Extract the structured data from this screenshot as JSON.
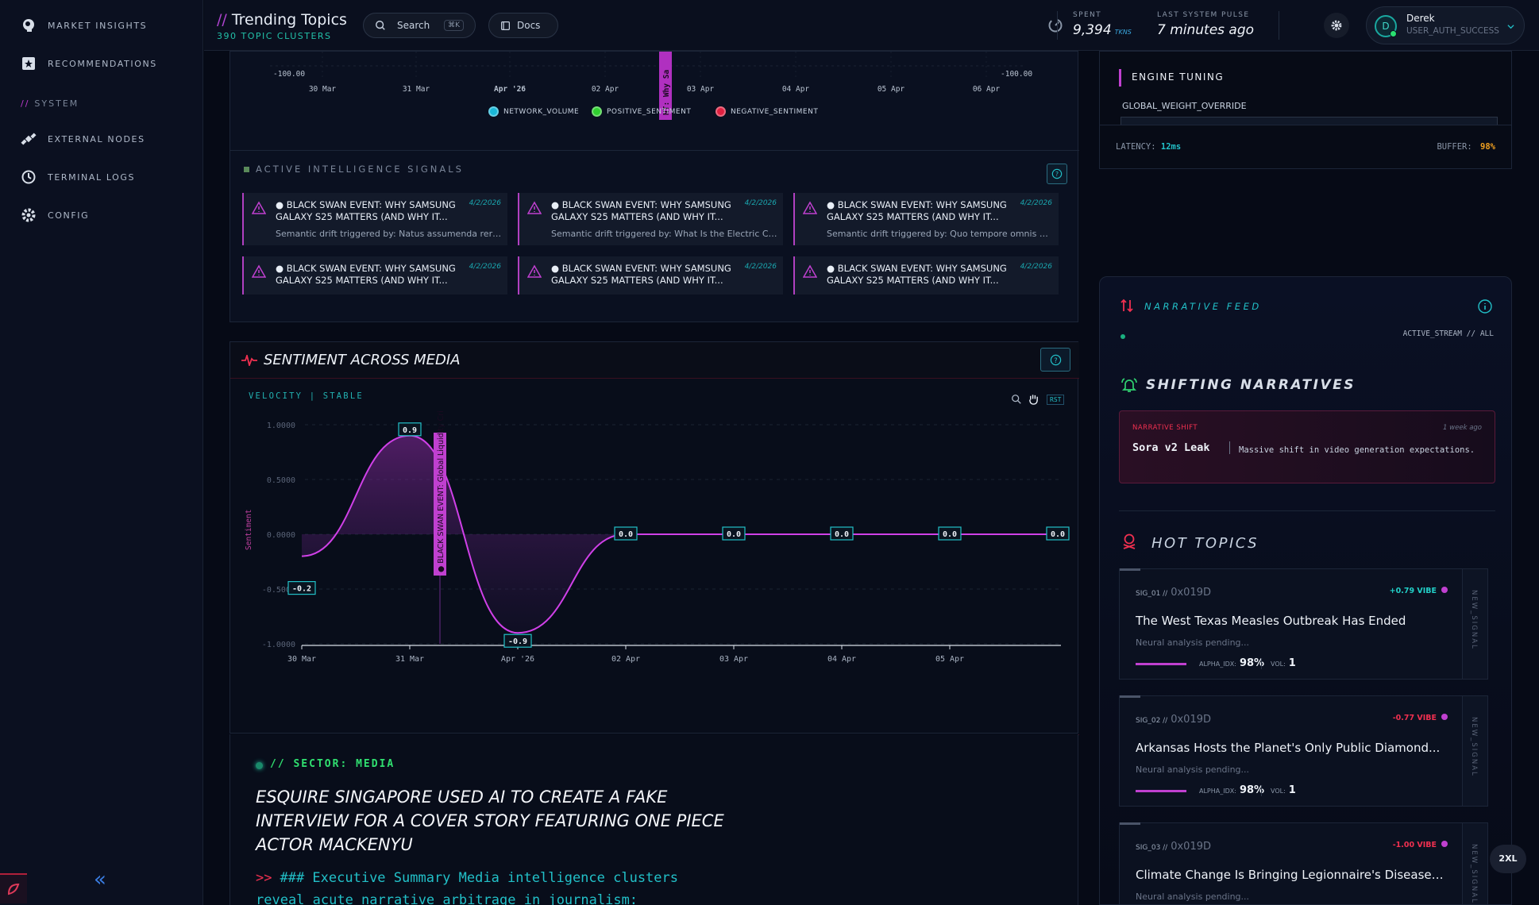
{
  "sidebar": {
    "items": [
      {
        "label": "MARKET INSIGHTS",
        "icon": "brain-icon"
      },
      {
        "label": "RECOMMENDATIONS",
        "icon": "star-icon"
      }
    ],
    "section_label": "SYSTEM",
    "section_prefix": "//",
    "system_items": [
      {
        "label": "EXTERNAL NODES",
        "icon": "satellite-icon"
      },
      {
        "label": "TERMINAL LOGS",
        "icon": "history-icon"
      },
      {
        "label": "CONFIG",
        "icon": "gear-icon"
      }
    ],
    "collapse_glyph": "«"
  },
  "header": {
    "prefix": "//",
    "title": "Trending Topics",
    "subtitle_count": "390",
    "subtitle_text": "TOPIC CLUSTERS",
    "search_label": "Search",
    "search_shortcut": "⌘K",
    "docs_label": "Docs",
    "spent_label": "SPENT",
    "spent_value": "9,394",
    "spent_unit": "TKNS",
    "pulse_label": "LAST SYSTEM PULSE",
    "pulse_value": "7 minutes ago",
    "user_initial": "D",
    "user_name": "Derek",
    "user_status": "USER_AUTH_SUCCESS"
  },
  "top_chart": {
    "y_left": "-100.00",
    "y_right": "-100.00",
    "x_ticks": [
      "30 Mar",
      "31 Mar",
      "Apr '26",
      "02 Apr",
      "03 Apr",
      "04 Apr",
      "05 Apr",
      "06 Apr"
    ],
    "annotation": "NT: Why Sa",
    "legend": [
      {
        "name": "NETWORK_VOLUME",
        "color": "#1ab8d8"
      },
      {
        "name": "POSITIVE_SENTIMENT",
        "color": "#30d030"
      },
      {
        "name": "NEGATIVE_SENTIMENT",
        "color": "#e02040"
      }
    ]
  },
  "signals": {
    "title": "ACTIVE INTELLIGENCE SIGNALS",
    "cards": [
      {
        "title": "● BLACK SWAN EVENT: WHY SAMSUNG GALAXY S25 MATTERS (AND WHY IT...",
        "date": "4/2/2026",
        "detail": "Semantic drift triggered by: Natus assumenda rerum"
      },
      {
        "title": "● BLACK SWAN EVENT: WHY SAMSUNG GALAXY S25 MATTERS (AND WHY IT...",
        "date": "4/2/2026",
        "detail": "Semantic drift triggered by: What Is the Electric Co..."
      },
      {
        "title": "● BLACK SWAN EVENT: WHY SAMSUNG GALAXY S25 MATTERS (AND WHY IT...",
        "date": "4/2/2026",
        "detail": "Semantic drift triggered by: Quo tempore omnis vo..."
      },
      {
        "title": "● BLACK SWAN EVENT: WHY SAMSUNG GALAXY S25 MATTERS (AND WHY IT...",
        "date": "4/2/2026",
        "detail": ""
      },
      {
        "title": "● BLACK SWAN EVENT: WHY SAMSUNG GALAXY S25 MATTERS (AND WHY IT...",
        "date": "4/2/2026",
        "detail": ""
      },
      {
        "title": "● BLACK SWAN EVENT: WHY SAMSUNG GALAXY S25 MATTERS (AND WHY IT...",
        "date": "4/2/2026",
        "detail": ""
      }
    ]
  },
  "sentiment": {
    "title": "SENTIMENT ACROSS MEDIA",
    "velocity": "VELOCITY | STABLE",
    "reset_label": "RST",
    "annotation": "● BLACK SWAN EVENT: Global Liquidity Crisis"
  },
  "chart_data": {
    "type": "line",
    "ylabel": "Sentiment",
    "ylim": [
      -1,
      1
    ],
    "y_ticks": [
      "1.0000",
      "0.5000",
      "0.0000",
      "-0.5000",
      "-1.0000"
    ],
    "x_ticks": [
      "30 Mar",
      "31 Mar",
      "Apr '26",
      "02 Apr",
      "03 Apr",
      "04 Apr",
      "05 Apr"
    ],
    "x": [
      "30 Mar",
      "31 Mar",
      "Apr '26",
      "02 Apr",
      "03 Apr",
      "04 Apr",
      "05 Apr",
      "06 Apr"
    ],
    "values": [
      -0.2,
      0.9,
      -0.9,
      0.0,
      0.0,
      0.0,
      0.0,
      0.0
    ],
    "labels": [
      "-0.2",
      "0.9",
      "-0.9",
      "0.0",
      "0.0",
      "0.0",
      "0.0",
      "0.0"
    ],
    "color": "#d040e8"
  },
  "article": {
    "sector": "// SECTOR: MEDIA",
    "headline": "ESQUIRE SINGAPORE USED AI TO CREATE A FAKE INTERVIEW FOR A COVER STORY FEATURING ONE PIECE ACTOR MACKENYU",
    "summary_prefix": ">>",
    "summary": "### Executive Summary Media intelligence clusters reveal acute narrative arbitrage in journalism:"
  },
  "engine": {
    "title": "ENGINE TUNING",
    "field_label": "GLOBAL_WEIGHT_OVERRIDE",
    "latency_label": "LATENCY:",
    "latency_value": "12ms",
    "buffer_label": "BUFFER:",
    "buffer_value": "98%"
  },
  "narrative": {
    "feed_title": "NARRATIVE FEED",
    "stream_label": "ACTIVE_STREAM // ALL",
    "shifting_title": "SHIFTING NARRATIVES",
    "shift": {
      "tag": "NARRATIVE SHIFT",
      "time": "1 week ago",
      "name": "Sora v2 Leak",
      "desc": "Massive shift in video generation expectations."
    }
  },
  "hot_topics": {
    "title": "HOT TOPICS",
    "items": [
      {
        "sig": "SIG_01 //",
        "hex": "0x019D",
        "vibe": "+0.79 VIBE",
        "vibe_color": "#22d0c8",
        "title": "The West Texas Measles Outbreak Has Ended",
        "status": "Neural analysis pending...",
        "alpha_label": "ALPHA_IDX:",
        "alpha": "98%",
        "vol_label": "VOL:",
        "vol": "1",
        "side": "NEW_SIGNAL"
      },
      {
        "sig": "SIG_02 //",
        "hex": "0x019D",
        "vibe": "-0.77 VIBE",
        "vibe_color": "#f03050",
        "title": "Arkansas Hosts the Planet's Only Public Diamond...",
        "status": "Neural analysis pending...",
        "alpha_label": "ALPHA_IDX:",
        "alpha": "98%",
        "vol_label": "VOL:",
        "vol": "1",
        "side": "NEW_SIGNAL"
      },
      {
        "sig": "SIG_03 //",
        "hex": "0x019D",
        "vibe": "-1.00 VIBE",
        "vibe_color": "#f03050",
        "title": "Climate Change Is Bringing Legionnaire's Disease t...",
        "status": "Neural analysis pending...",
        "alpha_label": "",
        "alpha": "",
        "vol_label": "",
        "vol": "",
        "side": "NEW_SIGNAL"
      }
    ]
  },
  "breakpoint_badge": "2XL"
}
